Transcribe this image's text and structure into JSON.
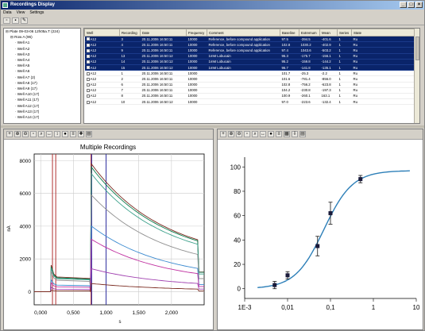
{
  "window": {
    "title": "Recordings Display"
  },
  "menu": [
    "Data",
    "View",
    "Settings"
  ],
  "toolbar": {
    "icons": [
      "new-icon",
      "save-icon",
      "edit-icon"
    ]
  },
  "tree": {
    "items": [
      {
        "label": "Plate 09-03-06 12h05a.T (224)",
        "indent": 0
      },
      {
        "label": "Row A (96)",
        "indent": 1
      },
      {
        "label": "Well A1",
        "indent": 2
      },
      {
        "label": "Well A2",
        "indent": 2
      },
      {
        "label": "Well A3",
        "indent": 2
      },
      {
        "label": "Well A4",
        "indent": 2
      },
      {
        "label": "Well A5",
        "indent": 2
      },
      {
        "label": "Well A6",
        "indent": 2
      },
      {
        "label": "Well A7 (2)",
        "indent": 2
      },
      {
        "label": "Well A8 (17)",
        "indent": 2
      },
      {
        "label": "Well A9 (17)",
        "indent": 2
      },
      {
        "label": "Well A10 (17)",
        "indent": 2
      },
      {
        "label": "Well A11 (17)",
        "indent": 2
      },
      {
        "label": "Well A12 (17)",
        "indent": 2
      },
      {
        "label": "Well A13 (17)",
        "indent": 2
      },
      {
        "label": "Well A14 (17)",
        "indent": 2
      }
    ]
  },
  "table": {
    "columns": [
      "Well",
      "Recording",
      "Date",
      "Frequency",
      "Comment",
      "Baseline",
      "Extremum",
      "Mean",
      "Series",
      "State"
    ],
    "rows": [
      {
        "sel": true,
        "cells": [
          "A12",
          "3",
          "20.11.2006 16:50:11",
          "10000",
          "Reference, before compound application",
          "97.5",
          "-394.5",
          "-401.6",
          "1",
          "Ru"
        ]
      },
      {
        "sel": true,
        "cells": [
          "A12",
          "4",
          "20.11.2006 16:50:11",
          "10000",
          "Reference, before compound application",
          "102.8",
          "1030.2",
          "-402.9",
          "1",
          "Ru"
        ]
      },
      {
        "sel": true,
        "cells": [
          "A12",
          "9",
          "20.11.2006 16:50:11",
          "10000",
          "Reference, before compound application",
          "97.4",
          "1043.6",
          "-503.2",
          "1",
          "Ru"
        ]
      },
      {
        "sel": true,
        "cells": [
          "A12",
          "13",
          "20.11.2006 16:50:12",
          "10000",
          "1mM Lobucain",
          "96.3",
          "-175.7",
          "-156.1",
          "1",
          "Ru"
        ]
      },
      {
        "sel": true,
        "cells": [
          "A12",
          "14",
          "20.11.2006 16:50:12",
          "10000",
          "1mM Lobucain",
          "95.2",
          "-159.8",
          "-144.2",
          "1",
          "Ru"
        ]
      },
      {
        "sel": true,
        "cells": [
          "A12",
          "15",
          "20.11.2006 16:50:12",
          "10000",
          "1mM Lobucain",
          "96.7",
          "-141.8",
          "-135.1",
          "1",
          "Ru"
        ]
      },
      {
        "sel": false,
        "cells": [
          "A12",
          "1",
          "20.11.2006 16:50:11",
          "10000",
          "",
          "101.7",
          "-25.3",
          "-2.2",
          "1",
          "Ru"
        ]
      },
      {
        "sel": false,
        "cells": [
          "A12",
          "2",
          "20.11.2006 16:50:11",
          "10000",
          "",
          "101.6",
          "-781.4",
          "-856.0",
          "1",
          "Ru"
        ]
      },
      {
        "sel": false,
        "cells": [
          "A12",
          "6",
          "20.11.2006 16:50:11",
          "10000",
          "",
          "102.8",
          "-756.2",
          "-623.8",
          "1",
          "Ru"
        ]
      },
      {
        "sel": false,
        "cells": [
          "A12",
          "7",
          "20.11.2006 16:50:11",
          "10000",
          "",
          "104.2",
          "-230.8",
          "-197.3",
          "1",
          "Ru"
        ]
      },
      {
        "sel": false,
        "cells": [
          "A12",
          "8",
          "20.11.2006 16:50:11",
          "10000",
          "",
          "100.9",
          "-260.1",
          "163.1",
          "1",
          "Ru"
        ]
      },
      {
        "sel": false,
        "cells": [
          "A12",
          "10",
          "20.11.2006 16:50:12",
          "10000",
          "",
          "97.0",
          "-223.6",
          "-132.4",
          "1",
          "Ru"
        ]
      }
    ]
  },
  "chart_data": [
    {
      "type": "line",
      "title": "Multiple Recordings",
      "xlabel": "s",
      "ylabel": "nA",
      "xlim": [
        -0.1,
        2.5
      ],
      "ylim": [
        -800,
        8400
      ],
      "xticks": [
        "0,000",
        "0,500",
        "1,000",
        "1,500",
        "2,000"
      ],
      "xtick_values": [
        0,
        0.5,
        1.0,
        1.5,
        2.0
      ],
      "yticks": [
        "0",
        "2000",
        "4000",
        "6000",
        "8000"
      ],
      "ytick_values": [
        0,
        2000,
        4000,
        6000,
        8000
      ],
      "markers": [
        {
          "x": 0.18,
          "color": "#b03030"
        },
        {
          "x": 0.23,
          "color": "#b03030"
        },
        {
          "x": 0.77,
          "color": "#b03030"
        },
        {
          "x": 0.78,
          "color": "#2f2fa0"
        },
        {
          "x": 1.0,
          "color": "#2f2fa0"
        }
      ],
      "series": [
        {
          "color": "#7a2a20",
          "pre": 900,
          "peak": 7800,
          "end": 3000
        },
        {
          "color": "#0a7a4a",
          "pre": 850,
          "peak": 7600,
          "end": 2950
        },
        {
          "color": "#3aa08a",
          "pre": 800,
          "peak": 7200,
          "end": 2700
        },
        {
          "color": "#909090",
          "pre": 700,
          "peak": 5900,
          "end": 2000
        },
        {
          "color": "#3a8ad0",
          "pre": 400,
          "peak": 4000,
          "end": 1100
        },
        {
          "color": "#c030a0",
          "pre": 300,
          "peak": 3200,
          "end": 800
        },
        {
          "color": "#a040b0",
          "pre": 150,
          "peak": 1400,
          "end": 400
        },
        {
          "color": "#7a2a20",
          "pre": 50,
          "peak": 500,
          "end": 100
        }
      ]
    },
    {
      "type": "scatter",
      "xscale": "log",
      "xlim": [
        0.001,
        10
      ],
      "ylim": [
        -8,
        108
      ],
      "xticks": [
        "1E-3",
        "0,01",
        "0,1",
        "1",
        "10"
      ],
      "xtick_values": [
        0.001,
        0.01,
        0.1,
        1,
        10
      ],
      "yticks": [
        "0",
        "20",
        "40",
        "60",
        "80",
        "100"
      ],
      "ytick_values": [
        0,
        20,
        40,
        60,
        80,
        100
      ],
      "points": [
        {
          "x": 0.005,
          "y": 3,
          "err": 3
        },
        {
          "x": 0.01,
          "y": 11,
          "err": 3
        },
        {
          "x": 0.05,
          "y": 35,
          "err": 8
        },
        {
          "x": 0.1,
          "y": 62,
          "err": 9
        },
        {
          "x": 0.5,
          "y": 90,
          "err": 3
        }
      ],
      "fit": {
        "ic50": 0.07,
        "hill": 1.3,
        "top": 97,
        "bottom": 0,
        "color": "#2d7fb8"
      }
    }
  ]
}
